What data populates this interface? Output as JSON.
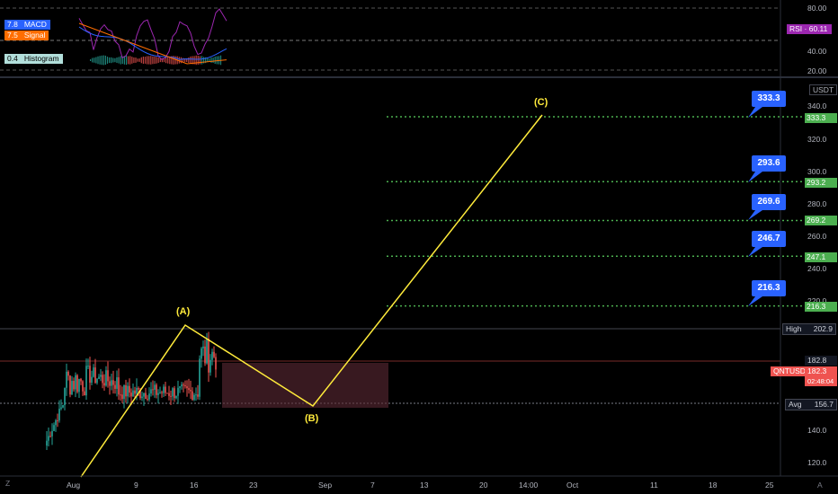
{
  "indicator": {
    "macd": {
      "value": "7.8",
      "label": "MACD",
      "color": "#2962ff"
    },
    "signal": {
      "value": "7.5",
      "label": "Signal",
      "color": "#ff6d00"
    },
    "histogram": {
      "value": "0.4",
      "label": "Histogram",
      "color": "#26a69a"
    },
    "rsi_label": "RSI",
    "rsi_value": "60.11",
    "rsi_ticks": [
      "80.00",
      "40.00",
      "20.00"
    ]
  },
  "price_axis": {
    "currency": "USDT",
    "ticks": [
      "340.0",
      "320.0",
      "300.0",
      "280.0",
      "260.0",
      "240.0",
      "220.0",
      "140.0",
      "120.0"
    ]
  },
  "time_axis": {
    "ticks": [
      "Aug",
      "9",
      "16",
      "23",
      "Sep",
      "7",
      "13",
      "20",
      "14:00",
      "Oct",
      "11",
      "18",
      "25"
    ],
    "timezone_btn": "Z",
    "auto_btn": "A"
  },
  "targets": [
    {
      "box": "333.3",
      "tag": "333.3"
    },
    {
      "box": "293.6",
      "tag": "293.2"
    },
    {
      "box": "269.6",
      "tag": "269.2"
    },
    {
      "box": "246.7",
      "tag": "247.1"
    },
    {
      "box": "216.3",
      "tag": "216.3"
    }
  ],
  "levels": {
    "high_label": "High",
    "high_value": "202.9",
    "ref_value": "182.8",
    "symbol": "QNTUSDT",
    "last_price": "182.3",
    "countdown": "02:48:04",
    "avg_label": "Avg",
    "avg_value": "156.7"
  },
  "waves": {
    "a": "(A)",
    "b": "(B)",
    "c": "(C)"
  },
  "colors": {
    "up": "#26a69a",
    "down": "#ef5350",
    "target_line": "#4caf50",
    "wave": "#ffeb3b",
    "box": "#2962ff",
    "rsi": "#9c27b0"
  }
}
